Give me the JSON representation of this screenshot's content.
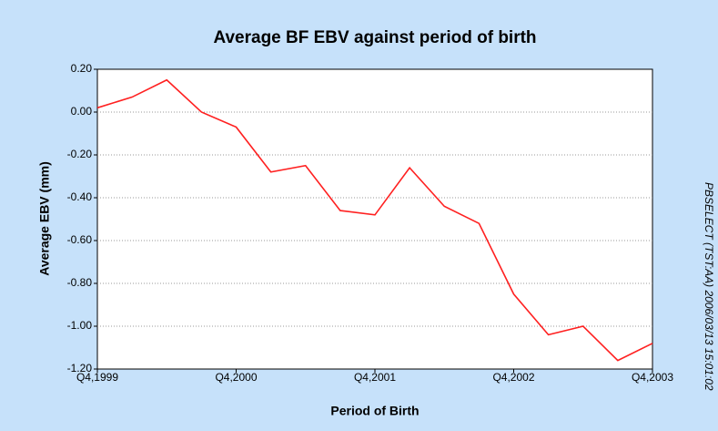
{
  "chart_data": {
    "type": "line",
    "title": "Average BF EBV against period of birth",
    "x_label": "Period of Birth",
    "y_label": "Average EBV (mm)",
    "side_note": "PBSELECT (TST:AA) 2006/03/13 15:01:02",
    "categories": [
      "Q4,1999",
      null,
      null,
      null,
      "Q4,2000",
      null,
      null,
      null,
      "Q4,2001",
      null,
      null,
      null,
      "Q4,2002",
      null,
      null,
      null,
      "Q4,2003"
    ],
    "values": [
      0.02,
      0.07,
      0.15,
      0.0,
      -0.07,
      -0.28,
      -0.25,
      -0.46,
      -0.48,
      -0.26,
      -0.44,
      -0.52,
      -0.85,
      -1.04,
      -1.0,
      -1.16,
      -1.08
    ],
    "color": "#ff2020",
    "ylim": [
      -1.2,
      0.2
    ],
    "yticks": [
      {
        "value": 0.2,
        "label": "0.20"
      },
      {
        "value": 0.0,
        "label": "0.00"
      },
      {
        "value": -0.2,
        "label": "-0.20"
      },
      {
        "value": -0.4,
        "label": "-0.40"
      },
      {
        "value": -0.6,
        "label": "-0.60"
      },
      {
        "value": -0.8,
        "label": "-0.80"
      },
      {
        "value": -1.0,
        "label": "-1.00"
      },
      {
        "value": -1.2,
        "label": "-1.20"
      }
    ],
    "grid": true
  }
}
